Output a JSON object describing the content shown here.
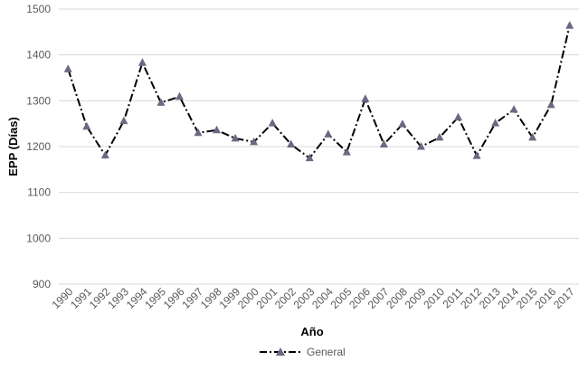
{
  "chart_data": {
    "type": "line",
    "title": "",
    "xlabel": "Año",
    "ylabel": "EPP (Días)",
    "ylim": [
      900,
      1500
    ],
    "yticks": [
      900,
      1000,
      1100,
      1200,
      1300,
      1400,
      1500
    ],
    "grid": true,
    "legend_position": "bottom",
    "categories": [
      "1990",
      "1991",
      "1992",
      "1993",
      "1994",
      "1995",
      "1996",
      "1997",
      "1998",
      "1999",
      "2000",
      "2001",
      "2002",
      "2003",
      "2004",
      "2005",
      "2006",
      "2007",
      "2008",
      "2009",
      "2010",
      "2011",
      "2012",
      "2013",
      "2014",
      "2015",
      "2016",
      "2017"
    ],
    "series": [
      {
        "name": "General",
        "color": "#000000",
        "marker": "triangle",
        "marker_color": "#6b6882",
        "line_style": "dash-dot",
        "values": [
          1369,
          1244,
          1181,
          1256,
          1383,
          1296,
          1309,
          1230,
          1236,
          1218,
          1210,
          1251,
          1205,
          1175,
          1227,
          1188,
          1304,
          1205,
          1249,
          1200,
          1220,
          1264,
          1180,
          1251,
          1281,
          1220,
          1291,
          1464
        ]
      }
    ]
  }
}
